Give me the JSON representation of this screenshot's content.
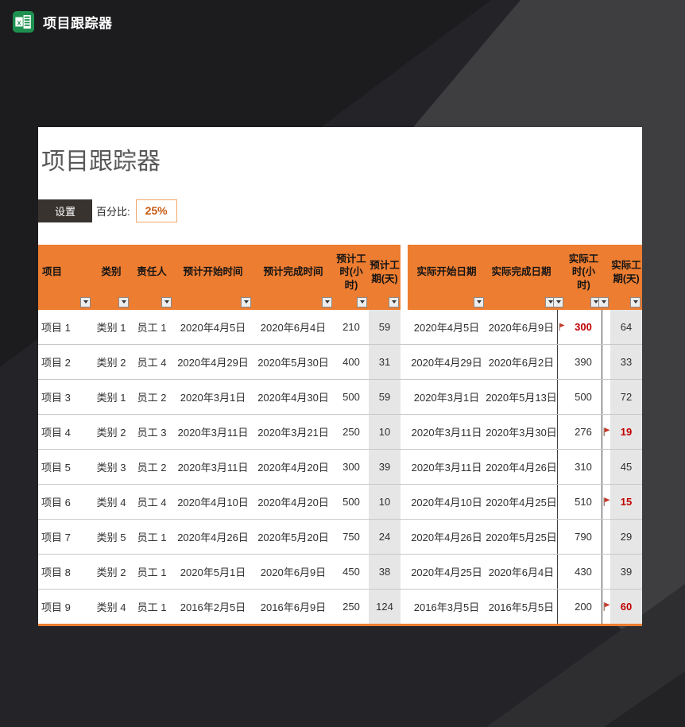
{
  "window": {
    "title": "项目跟踪器",
    "app_icon": "excel-icon"
  },
  "panel": {
    "heading": "项目跟踪器",
    "settings_button": "设置",
    "percent_label": "百分比:",
    "percent_value": "25%"
  },
  "table": {
    "headers": [
      "项目",
      "类别",
      "责任人",
      "预计开始时间",
      "预计完成时间",
      "预计工时(小时)",
      "预计工期(天)",
      "实际开始日期",
      "实际完成日期",
      "实际工时(小时)",
      "实际工期(天)"
    ],
    "rows": [
      {
        "project": "项目 1",
        "category": "类别 1",
        "owner": "员工 1",
        "plan_start": "2020年4月5日",
        "plan_end": "2020年6月4日",
        "plan_hours": "210",
        "plan_days": "59",
        "actual_start": "2020年4月5日",
        "actual_end": "2020年6月9日",
        "hours_flag": true,
        "actual_hours": "300",
        "hours_red": true,
        "days_flag": false,
        "actual_days": "64",
        "days_red": false
      },
      {
        "project": "项目 2",
        "category": "类别 2",
        "owner": "员工 4",
        "plan_start": "2020年4月29日",
        "plan_end": "2020年5月30日",
        "plan_hours": "400",
        "plan_days": "31",
        "actual_start": "2020年4月29日",
        "actual_end": "2020年6月2日",
        "hours_flag": false,
        "actual_hours": "390",
        "hours_red": false,
        "days_flag": false,
        "actual_days": "33",
        "days_red": false
      },
      {
        "project": "项目 3",
        "category": "类别 1",
        "owner": "员工 2",
        "plan_start": "2020年3月1日",
        "plan_end": "2020年4月30日",
        "plan_hours": "500",
        "plan_days": "59",
        "actual_start": "2020年3月1日",
        "actual_end": "2020年5月13日",
        "hours_flag": false,
        "actual_hours": "500",
        "hours_red": false,
        "days_flag": false,
        "actual_days": "72",
        "days_red": false
      },
      {
        "project": "项目 4",
        "category": "类别 2",
        "owner": "员工 3",
        "plan_start": "2020年3月11日",
        "plan_end": "2020年3月21日",
        "plan_hours": "250",
        "plan_days": "10",
        "actual_start": "2020年3月11日",
        "actual_end": "2020年3月30日",
        "hours_flag": false,
        "actual_hours": "276",
        "hours_red": false,
        "days_flag": true,
        "actual_days": "19",
        "days_red": true
      },
      {
        "project": "项目 5",
        "category": "类别 3",
        "owner": "员工 2",
        "plan_start": "2020年3月11日",
        "plan_end": "2020年4月20日",
        "plan_hours": "300",
        "plan_days": "39",
        "actual_start": "2020年3月11日",
        "actual_end": "2020年4月26日",
        "hours_flag": false,
        "actual_hours": "310",
        "hours_red": false,
        "days_flag": false,
        "actual_days": "45",
        "days_red": false
      },
      {
        "project": "项目 6",
        "category": "类别 4",
        "owner": "员工 4",
        "plan_start": "2020年4月10日",
        "plan_end": "2020年4月20日",
        "plan_hours": "500",
        "plan_days": "10",
        "actual_start": "2020年4月10日",
        "actual_end": "2020年4月25日",
        "hours_flag": false,
        "actual_hours": "510",
        "hours_red": false,
        "days_flag": true,
        "actual_days": "15",
        "days_red": true
      },
      {
        "project": "项目 7",
        "category": "类别 5",
        "owner": "员工 1",
        "plan_start": "2020年4月26日",
        "plan_end": "2020年5月20日",
        "plan_hours": "750",
        "plan_days": "24",
        "actual_start": "2020年4月26日",
        "actual_end": "2020年5月25日",
        "hours_flag": false,
        "actual_hours": "790",
        "hours_red": false,
        "days_flag": false,
        "actual_days": "29",
        "days_red": false
      },
      {
        "project": "项目 8",
        "category": "类别 2",
        "owner": "员工 1",
        "plan_start": "2020年5月1日",
        "plan_end": "2020年6月9日",
        "plan_hours": "450",
        "plan_days": "38",
        "actual_start": "2020年4月25日",
        "actual_end": "2020年6月4日",
        "hours_flag": false,
        "actual_hours": "430",
        "hours_red": false,
        "days_flag": false,
        "actual_days": "39",
        "days_red": false
      },
      {
        "project": "项目 9",
        "category": "类别 4",
        "owner": "员工 1",
        "plan_start": "2016年2月5日",
        "plan_end": "2016年6月9日",
        "plan_hours": "250",
        "plan_days": "124",
        "actual_start": "2016年3月5日",
        "actual_end": "2016年5月5日",
        "hours_flag": false,
        "actual_hours": "200",
        "hours_red": false,
        "days_flag": true,
        "actual_days": "60",
        "days_red": true
      }
    ]
  },
  "icons": {
    "app": "excel-icon",
    "filter": "caret-down-icon",
    "warning": "red-flag-icon"
  },
  "colors": {
    "accent_orange": "#ED7D31",
    "alert_red": "#C00000",
    "flag_red": "#C53A28",
    "gray_cell": "#E7E6E6",
    "settings_button": "#38332F",
    "percent_text": "#C55A11",
    "percent_border": "#F1A86D"
  }
}
